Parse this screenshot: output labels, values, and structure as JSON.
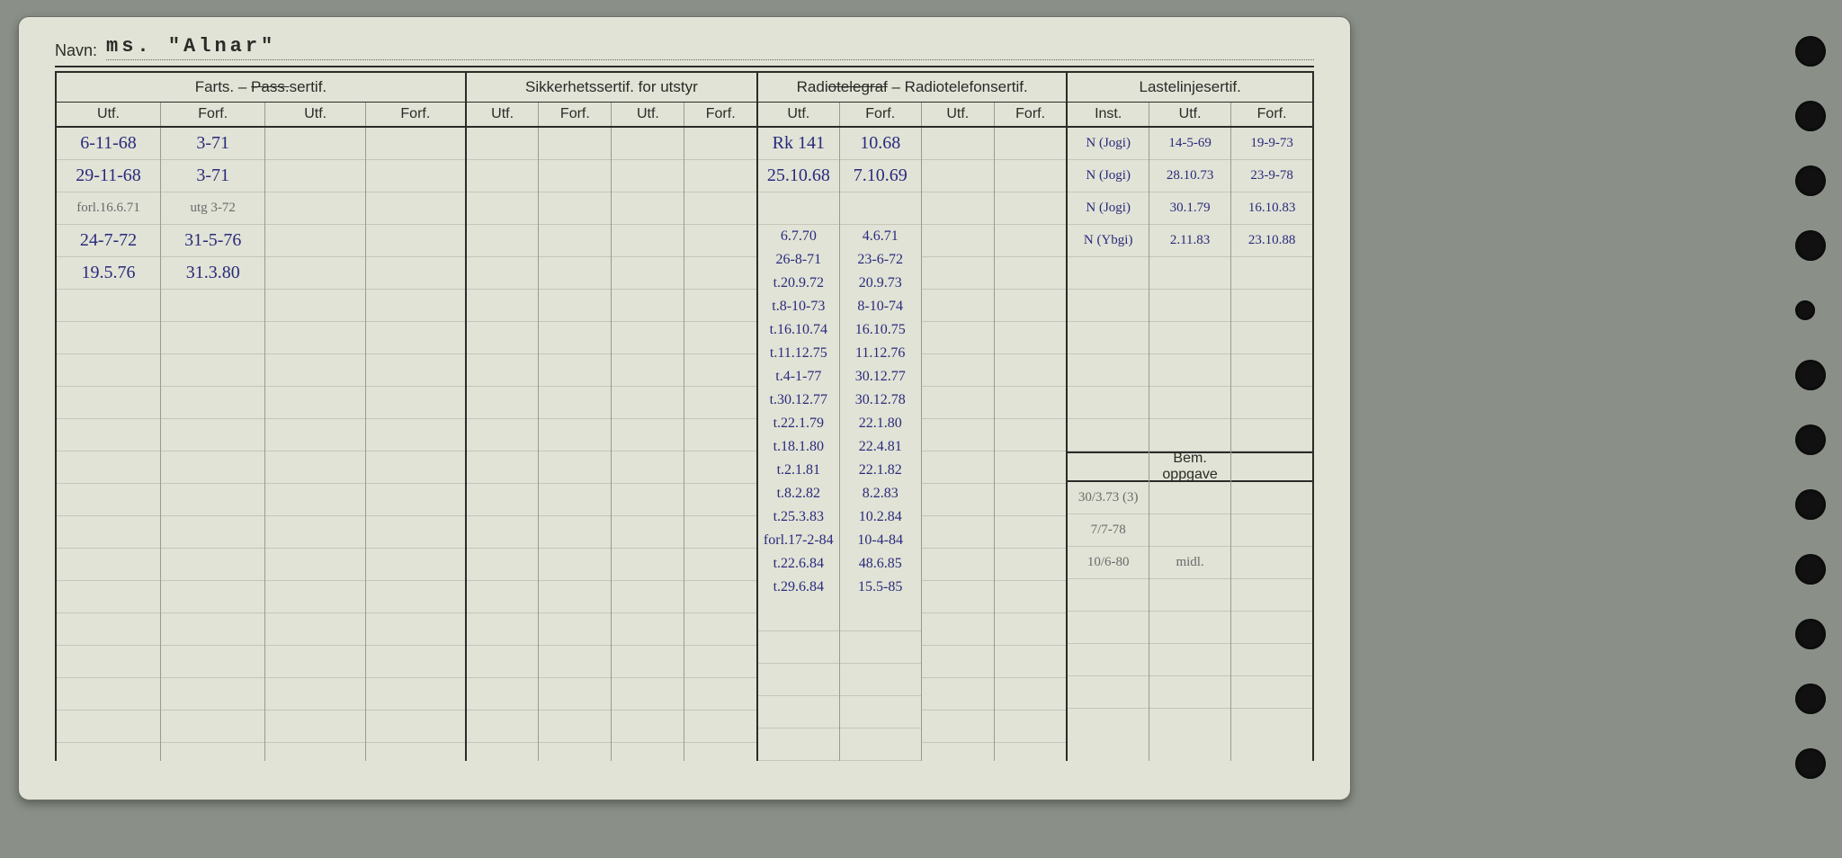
{
  "header": {
    "navn_label": "Navn:",
    "navn_value": "ms. \"Alnar\""
  },
  "groups": {
    "farts": {
      "title": "Farts. – ",
      "strike": "Pass.",
      "suffix": "sertif.",
      "sub": [
        "Utf.",
        "Forf.",
        "Utf.",
        "Forf."
      ]
    },
    "sikkerhet": {
      "title": "Sikkerhetssertif. for utstyr",
      "sub": [
        "Utf.",
        "Forf.",
        "Utf.",
        "Forf."
      ]
    },
    "radio": {
      "pre": "Radi",
      "strike": "otelegraf",
      "post": " – Radiotelefonsertif.",
      "sub": [
        "Utf.",
        "Forf.",
        "Utf.",
        "Forf."
      ]
    },
    "last": {
      "title": "Lastelinjesertif.",
      "sub": [
        "Inst.",
        "Utf.",
        "Forf."
      ]
    },
    "bem": {
      "title": "Bem. oppgave"
    }
  },
  "farts_col1": [
    "6-11-68",
    "29-11-68",
    "forl.16.6.71",
    "24-7-72",
    "19.5.76"
  ],
  "farts_col2": [
    "3-71",
    "3-71",
    "utg 3-72",
    "31-5-76",
    "31.3.80"
  ],
  "radio_col1": [
    "Rk 141",
    "25.10.68",
    "",
    "6.7.70",
    "26-8-71",
    "t.20.9.72",
    "t.8-10-73",
    "t.16.10.74",
    "t.11.12.75",
    "t.4-1-77",
    "t.30.12.77",
    "t.22.1.79",
    "t.18.1.80",
    "t.2.1.81",
    "t.8.2.82",
    "t.25.3.83",
    "forl.17-2-84",
    "t.22.6.84",
    "t.29.6.84"
  ],
  "radio_col2": [
    "10.68",
    "7.10.69",
    "",
    "4.6.71",
    "23-6-72",
    "20.9.73",
    "8-10-74",
    "16.10.75",
    "11.12.76",
    "30.12.77",
    "30.12.78",
    "22.1.80",
    "22.4.81",
    "22.1.82",
    "8.2.83",
    "10.2.84",
    "10-4-84",
    "48.6.85",
    "15.5-85"
  ],
  "last_col1": [
    "N (Jogi)",
    "N (Jogi)",
    "N (Jogi)",
    "N (Ybgi)"
  ],
  "last_col2": [
    "14-5-69",
    "28.10.73",
    "30.1.79",
    "2.11.83"
  ],
  "last_col3": [
    "19-9-73",
    "23-9-78",
    "16.10.83",
    "23.10.88"
  ],
  "bem_lines": [
    "30/3.73 (3)",
    "7/7-78",
    "10/6-80  midl."
  ],
  "colors": {
    "ink_blue": "#2a2a7c",
    "pencil": "#6a6a6a",
    "paper": "#e1e3d6",
    "rule": "#c5c6bb",
    "border": "#2b2b28"
  }
}
